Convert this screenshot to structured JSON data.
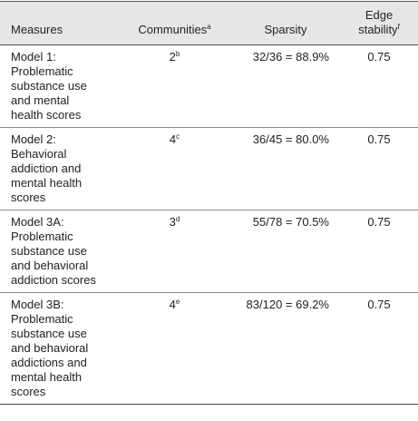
{
  "table": {
    "header": [
      {
        "text": "Measures"
      },
      {
        "text": "Communities",
        "sup": "a"
      },
      {
        "text": "Sparsity"
      },
      {
        "text": "Edge stability",
        "sup": "f"
      }
    ],
    "rows": [
      {
        "measure": "Model 1: Problematic substance use and mental health scores",
        "communities": "2",
        "communities_sup": "b",
        "sparsity": "32/36 = 88.9%",
        "stability": "0.75"
      },
      {
        "measure": "Model 2: Behavioral addiction and mental health scores",
        "communities": "4",
        "communities_sup": "c",
        "sparsity": "36/45 = 80.0%",
        "stability": "0.75"
      },
      {
        "measure": "Model 3A: Problematic substance use and behavioral addiction scores",
        "communities": "3",
        "communities_sup": "d",
        "sparsity": "55/78 = 70.5%",
        "stability": "0.75"
      },
      {
        "measure": "Model 3B: Problematic substance use and behavioral addictions and mental health scores",
        "communities": "4",
        "communities_sup": "e",
        "sparsity": "83/120 = 69.2%",
        "stability": "0.75"
      }
    ]
  }
}
